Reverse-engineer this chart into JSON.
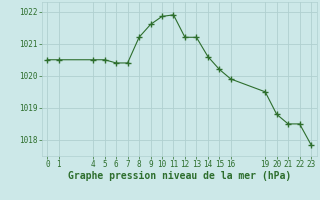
{
  "x": [
    0,
    1,
    4,
    5,
    6,
    7,
    8,
    9,
    10,
    11,
    12,
    13,
    14,
    15,
    16,
    19,
    20,
    21,
    22,
    23
  ],
  "y": [
    1020.5,
    1020.5,
    1020.5,
    1020.5,
    1020.4,
    1020.4,
    1021.2,
    1021.6,
    1021.85,
    1021.9,
    1021.2,
    1021.2,
    1020.6,
    1020.2,
    1019.9,
    1019.5,
    1018.8,
    1018.5,
    1018.5,
    1017.85
  ],
  "title": "Graphe pression niveau de la mer (hPa)",
  "xlim": [
    -0.5,
    23.5
  ],
  "ylim": [
    1017.5,
    1022.3
  ],
  "yticks": [
    1018,
    1019,
    1020,
    1021,
    1022
  ],
  "xticks": [
    0,
    1,
    4,
    5,
    6,
    7,
    8,
    9,
    10,
    11,
    12,
    13,
    14,
    15,
    16,
    19,
    20,
    21,
    22,
    23
  ],
  "line_color": "#2d6e2d",
  "marker_color": "#2d6e2d",
  "bg_color": "#cce8e8",
  "grid_color": "#b0d0d0",
  "axis_color": "#2d6e2d",
  "title_color": "#2d6e2d",
  "tick_label_color": "#2d6e2d",
  "title_fontsize": 7.0,
  "tick_fontsize": 5.5
}
